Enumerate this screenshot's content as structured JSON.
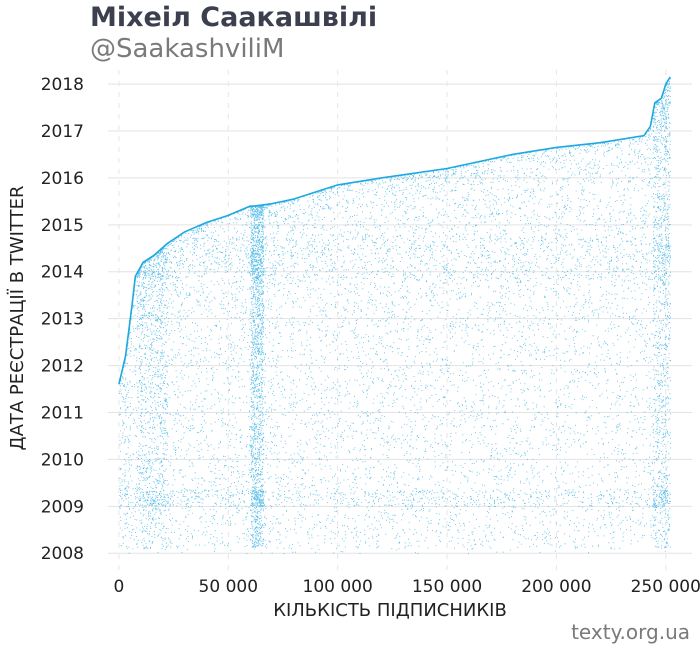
{
  "header": {
    "title": "Міхеіл Саакашвілі",
    "subtitle": "@SaakashviliM"
  },
  "footer": {
    "credit": "texty.org.ua"
  },
  "chart_data": {
    "type": "scatter",
    "title": "Міхеіл Саакашвілі",
    "subtitle": "@SaakashviliM",
    "xlabel": "КІЛЬКІСТЬ ПІДПИСНИКІВ",
    "ylabel": "ДАТА РЕЄСТРАЦІЇ В TWITTER",
    "xlim": [
      -5000,
      262000
    ],
    "ylim": [
      2007.6,
      2018.3
    ],
    "x_ticks": [
      0,
      50000,
      100000,
      150000,
      200000,
      250000
    ],
    "x_tick_labels": [
      "0",
      "50 000",
      "100 000",
      "150 000",
      "200 000",
      "250 000"
    ],
    "y_ticks": [
      2008,
      2009,
      2010,
      2011,
      2012,
      2013,
      2014,
      2015,
      2016,
      2017,
      2018
    ],
    "y_tick_labels": [
      "2008",
      "2009",
      "2010",
      "2011",
      "2012",
      "2013",
      "2014",
      "2015",
      "2016",
      "2017",
      "2018"
    ],
    "grid": "horizontal solid, vertical dashed",
    "point_color": "#1fa8e0",
    "upper_envelope": {
      "x": [
        0,
        3000,
        6000,
        7500,
        11000,
        16000,
        22000,
        30000,
        40000,
        50000,
        60000,
        62000,
        70000,
        80000,
        100000,
        120000,
        150000,
        180000,
        200000,
        220000,
        240000,
        243000,
        245000,
        248000,
        250000,
        252000
      ],
      "y": [
        2011.6,
        2012.2,
        2013.3,
        2013.9,
        2014.2,
        2014.35,
        2014.6,
        2014.85,
        2015.05,
        2015.2,
        2015.4,
        2015.4,
        2015.45,
        2015.55,
        2015.85,
        2016.0,
        2016.2,
        2016.5,
        2016.65,
        2016.75,
        2016.9,
        2017.1,
        2017.6,
        2017.7,
        2018.0,
        2018.15
      ]
    },
    "notes": "Each point is one follower, ordered by follow sequence; density bands near 2009, 2014 and at x≈60000–65000 and x≈245000–252000"
  }
}
